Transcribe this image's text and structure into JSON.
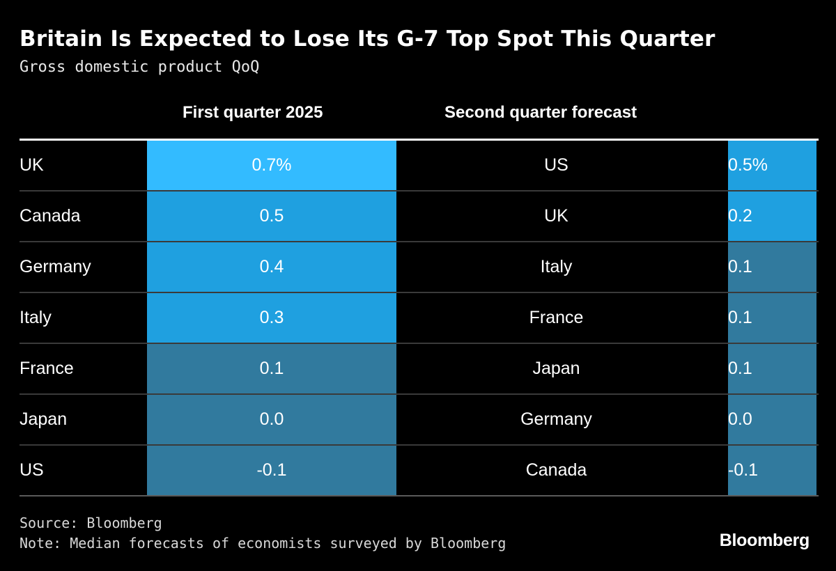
{
  "title": "Britain Is Expected to Lose Its G-7 Top Spot This Quarter",
  "subtitle": "Gross domestic product QoQ",
  "source": "Source: Bloomberg",
  "note": "Note: Median forecasts of economists surveyed by Bloomberg",
  "brand": "Bloomberg",
  "colors": {
    "background": "#000000",
    "high": "#33bbff",
    "mid": "#1fa0e0",
    "low": "#317a9e"
  },
  "chart_data": {
    "type": "table",
    "columns": [
      "First quarter 2025",
      "Second quarter forecast"
    ],
    "first_quarter": [
      {
        "country": "UK",
        "value": 0.7,
        "label": "0.7%",
        "color": "#33bbff"
      },
      {
        "country": "Canada",
        "value": 0.5,
        "label": "0.5",
        "color": "#1fa0e0"
      },
      {
        "country": "Germany",
        "value": 0.4,
        "label": "0.4",
        "color": "#1fa0e0"
      },
      {
        "country": "Italy",
        "value": 0.3,
        "label": "0.3",
        "color": "#1fa0e0"
      },
      {
        "country": "France",
        "value": 0.1,
        "label": "0.1",
        "color": "#317a9e"
      },
      {
        "country": "Japan",
        "value": 0.0,
        "label": "0.0",
        "color": "#317a9e"
      },
      {
        "country": "US",
        "value": -0.1,
        "label": "-0.1",
        "color": "#317a9e"
      }
    ],
    "second_quarter_forecast": [
      {
        "country": "US",
        "value": 0.5,
        "label": "0.5%",
        "color": "#1fa0e0"
      },
      {
        "country": "UK",
        "value": 0.2,
        "label": "0.2",
        "color": "#1fa0e0"
      },
      {
        "country": "Italy",
        "value": 0.1,
        "label": "0.1",
        "color": "#317a9e"
      },
      {
        "country": "France",
        "value": 0.1,
        "label": "0.1",
        "color": "#317a9e"
      },
      {
        "country": "Japan",
        "value": 0.1,
        "label": "0.1",
        "color": "#317a9e"
      },
      {
        "country": "Germany",
        "value": 0.0,
        "label": "0.0",
        "color": "#317a9e"
      },
      {
        "country": "Canada",
        "value": -0.1,
        "label": "-0.1",
        "color": "#317a9e"
      }
    ]
  }
}
